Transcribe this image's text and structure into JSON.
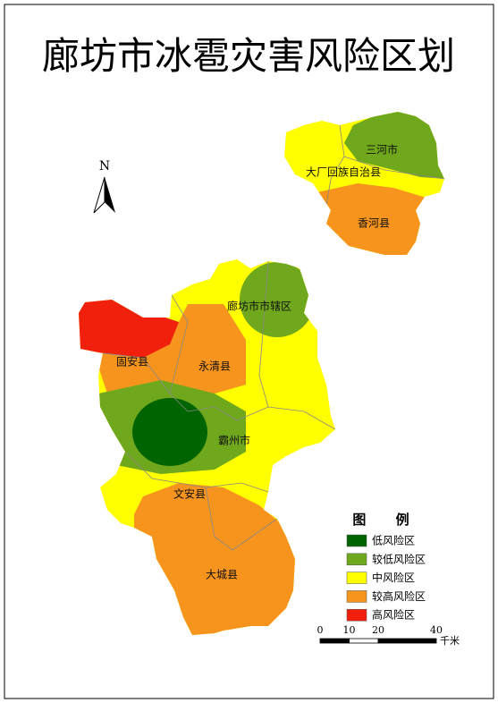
{
  "title": "廊坊市冰雹灾害风险区划",
  "north": "N",
  "regions": [
    {
      "label": "三河市"
    },
    {
      "label": "大厂回族自治县"
    },
    {
      "label": "香河县"
    },
    {
      "label": "廊坊市市辖区"
    },
    {
      "label": "固安县"
    },
    {
      "label": "永清县"
    },
    {
      "label": "霸州市"
    },
    {
      "label": "文安县"
    },
    {
      "label": "大城县"
    }
  ],
  "legend": {
    "title": "图 例",
    "items": [
      {
        "label": "低风险区",
        "color": "#006400"
      },
      {
        "label": "较低风险区",
        "color": "#6fa81c"
      },
      {
        "label": "中风险区",
        "color": "#ffff00"
      },
      {
        "label": "较高风险区",
        "color": "#f7941d"
      },
      {
        "label": "高风险区",
        "color": "#f0200c"
      }
    ]
  },
  "scale": {
    "ticks": [
      0,
      10,
      20,
      40
    ],
    "unit": "千米"
  }
}
